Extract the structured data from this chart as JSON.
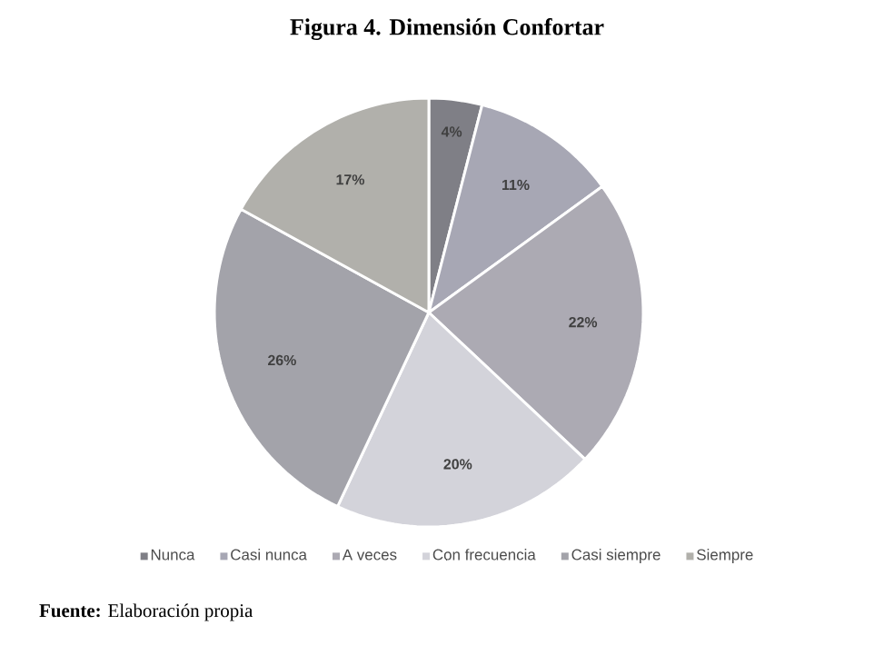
{
  "chart_data": {
    "type": "pie",
    "title": "Figura 4. Dimensión Confortar",
    "categories": [
      "Nunca",
      "Casi nunca",
      "A veces",
      "Con frecuencia",
      "Casi siempre",
      "Siempre"
    ],
    "values": [
      4,
      11,
      22,
      20,
      26,
      17
    ],
    "value_labels": [
      "4%",
      "11%",
      "22%",
      "20%",
      "26%",
      "17%"
    ],
    "colors": [
      "#7f7f86",
      "#a7a7b4",
      "#acaab3",
      "#d3d3da",
      "#a3a3aa",
      "#b1b0ab"
    ],
    "legend": "bottom",
    "annotations": [
      "**Fuente:** Elaboración propia"
    ]
  }
}
